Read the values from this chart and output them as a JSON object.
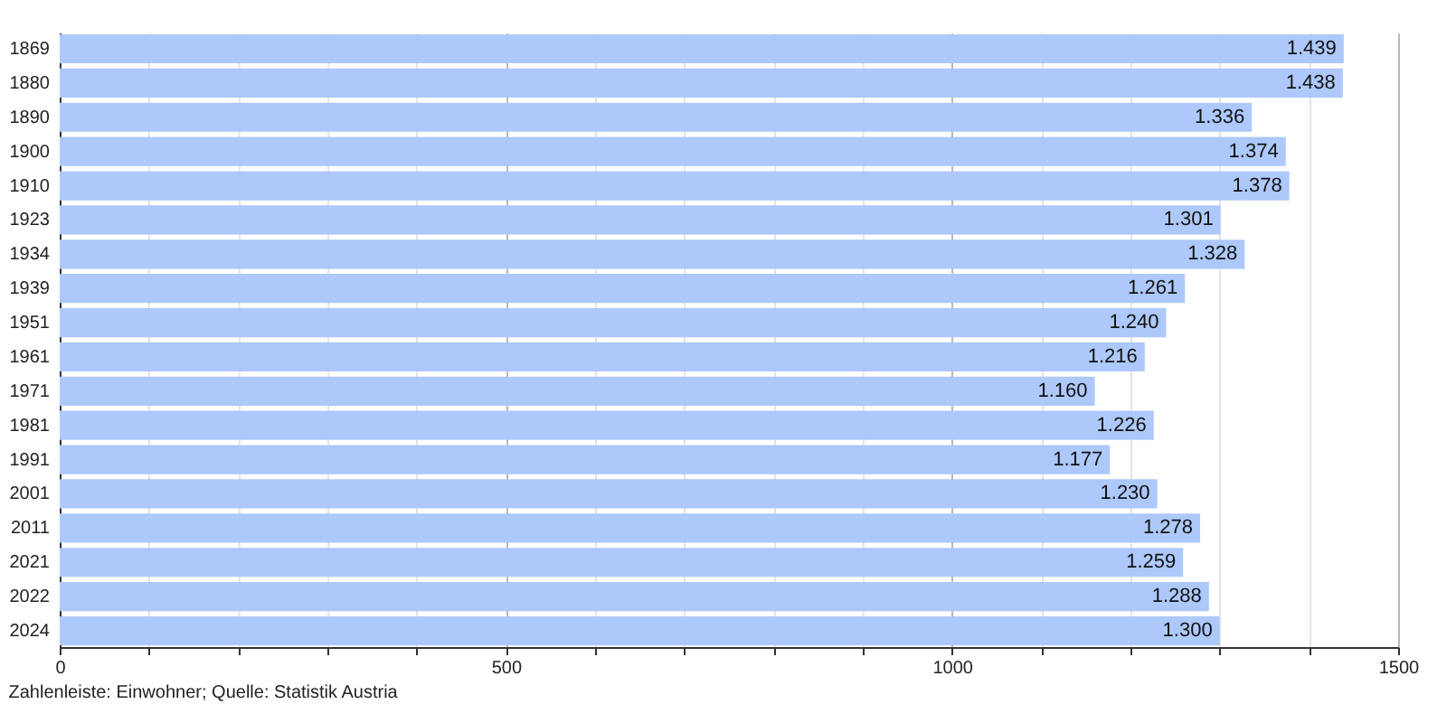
{
  "chart_data": {
    "type": "bar",
    "orientation": "horizontal",
    "categories": [
      "1869",
      "1880",
      "1890",
      "1900",
      "1910",
      "1923",
      "1934",
      "1939",
      "1951",
      "1961",
      "1971",
      "1981",
      "1991",
      "2001",
      "2011",
      "2021",
      "2022",
      "2024"
    ],
    "values": [
      1439,
      1438,
      1336,
      1374,
      1378,
      1301,
      1328,
      1261,
      1240,
      1216,
      1160,
      1226,
      1177,
      1230,
      1278,
      1259,
      1288,
      1300
    ],
    "value_labels": [
      "1.439",
      "1.438",
      "1.336",
      "1.374",
      "1.378",
      "1.301",
      "1.328",
      "1.261",
      "1.240",
      "1.216",
      "1.160",
      "1.226",
      "1.177",
      "1.230",
      "1.278",
      "1.259",
      "1.288",
      "1.300"
    ],
    "color": "#adc8fa",
    "xlim": [
      0,
      1500
    ],
    "xticks": [
      0,
      {
        "value": 100,
        "label": null
      },
      {
        "value": 200,
        "label": null
      },
      {
        "value": 300,
        "label": null
      },
      {
        "value": 400,
        "label": null
      },
      500,
      {
        "value": 600,
        "label": null
      },
      {
        "value": 700,
        "label": null
      },
      {
        "value": 800,
        "label": null
      },
      {
        "value": 900,
        "label": null
      },
      1000,
      {
        "value": 1100,
        "label": null
      },
      {
        "value": 1200,
        "label": null
      },
      {
        "value": 1300,
        "label": null
      },
      {
        "value": 1400,
        "label": null
      },
      1500
    ],
    "grid": "x",
    "annotations": [
      "Zahlenleiste: Einwohner; Quelle: Statistik Austria"
    ]
  }
}
